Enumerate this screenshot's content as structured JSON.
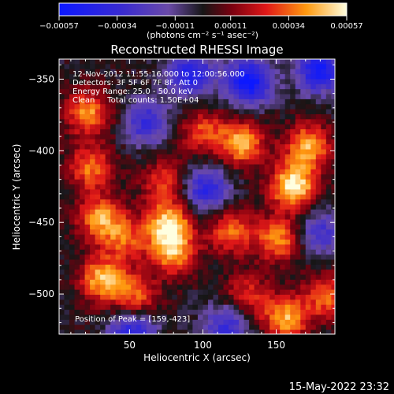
{
  "chart_data": {
    "type": "heatmap",
    "title": "Reconstructed RHESSI Image",
    "xlabel": "Heliocentric X (arcsec)",
    "ylabel": "Heliocentric Y (arcsec)",
    "xlim": [
      2,
      190
    ],
    "ylim": [
      -528,
      -336
    ],
    "x_ticks": [
      50,
      100,
      150
    ],
    "x_tick_labels": [
      "50",
      "100",
      "150"
    ],
    "y_ticks": [
      -350,
      -400,
      -450,
      -500
    ],
    "y_tick_labels": [
      "−350",
      "−400",
      "−450",
      "−500"
    ],
    "colorbar": {
      "range": [
        -0.00057,
        0.00057
      ],
      "ticks": [
        -0.00057,
        -0.00034,
        -0.00011,
        0.00011,
        0.00034,
        0.00057
      ],
      "tick_labels": [
        "−0.00057",
        "−0.00034",
        "−0.00011",
        "0.00011",
        "0.00034",
        "0.00057"
      ],
      "unit_label": "(photons cm⁻² s⁻¹ asec⁻²)"
    },
    "annotations": {
      "time_range": "12-Nov-2012 11:55:16.000 to 12:00:56.000",
      "detectors": "Detectors: 3F 5F 6F 7F 8F, Att 0",
      "energy_range": "Energy Range: 25.0 - 50.0 keV",
      "clean_counts": "Clean     Total counts: 1.50E+04",
      "peak": "Position of Peak = [159,-423]"
    },
    "features": [
      {
        "x": 20,
        "y": -372,
        "value": 0.0004
      },
      {
        "x": 22,
        "y": -410,
        "value": 0.00036
      },
      {
        "x": 28,
        "y": -445,
        "value": 0.00042
      },
      {
        "x": 30,
        "y": -488,
        "value": 0.00046
      },
      {
        "x": 45,
        "y": -460,
        "value": 0.0003
      },
      {
        "x": 52,
        "y": -500,
        "value": 0.00033
      },
      {
        "x": 75,
        "y": -450,
        "value": 0.00052
      },
      {
        "x": 78,
        "y": -470,
        "value": 0.0004
      },
      {
        "x": 72,
        "y": -420,
        "value": 0.00028
      },
      {
        "x": 98,
        "y": -385,
        "value": 0.0003
      },
      {
        "x": 125,
        "y": -393,
        "value": 0.00045
      },
      {
        "x": 118,
        "y": -455,
        "value": 0.00035
      },
      {
        "x": 128,
        "y": -500,
        "value": 0.00028
      },
      {
        "x": 160,
        "y": -423,
        "value": 0.00057
      },
      {
        "x": 170,
        "y": -395,
        "value": 0.00045
      },
      {
        "x": 150,
        "y": -460,
        "value": 0.0004
      },
      {
        "x": 155,
        "y": -515,
        "value": 0.00044
      },
      {
        "x": 183,
        "y": -500,
        "value": 0.00034
      },
      {
        "x": 90,
        "y": -345,
        "value": -0.00045
      },
      {
        "x": 130,
        "y": -350,
        "value": -0.00057
      },
      {
        "x": 178,
        "y": -342,
        "value": -0.0005
      },
      {
        "x": 60,
        "y": -378,
        "value": -0.00035
      },
      {
        "x": 100,
        "y": -425,
        "value": -0.0004
      },
      {
        "x": 50,
        "y": -525,
        "value": -0.00042
      },
      {
        "x": 178,
        "y": -455,
        "value": -0.0003
      },
      {
        "x": 115,
        "y": -520,
        "value": -0.00035
      }
    ]
  },
  "footer": {
    "timestamp": "15-May-2022 23:32"
  }
}
